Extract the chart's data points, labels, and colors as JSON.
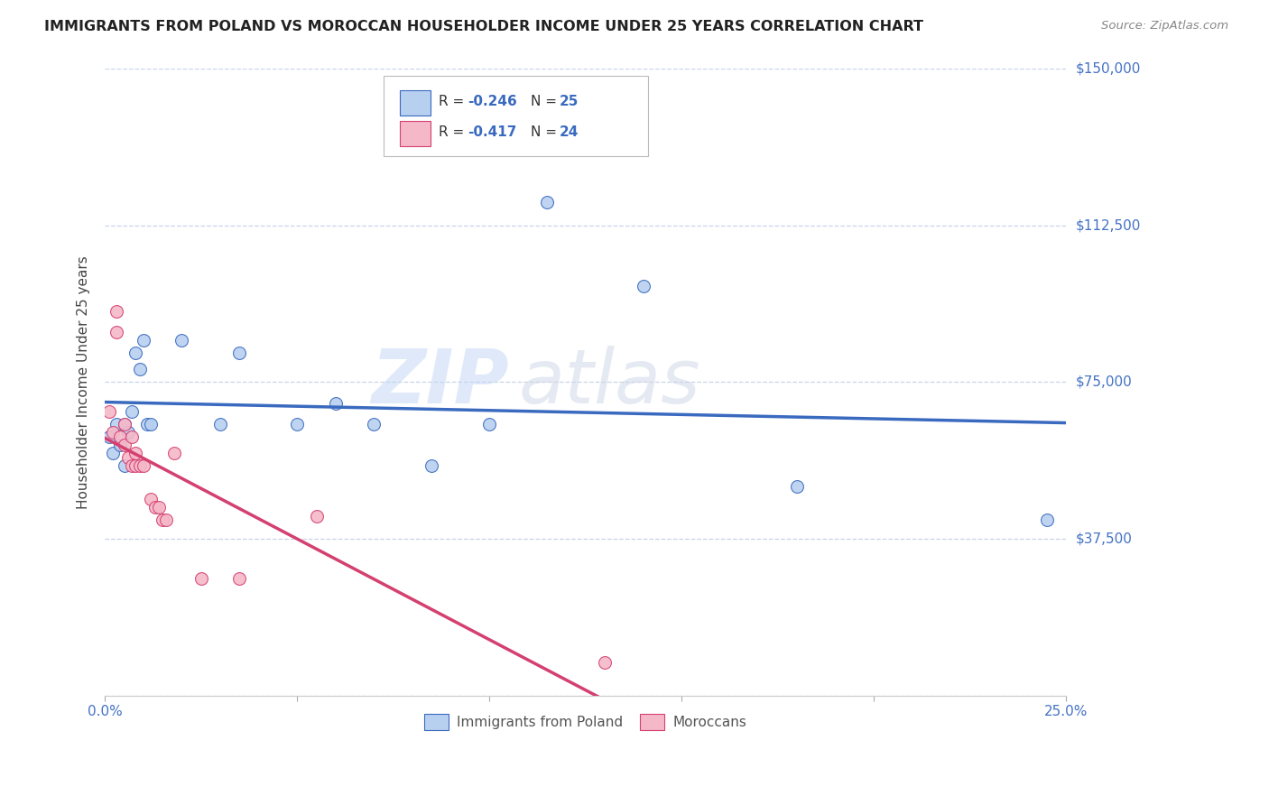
{
  "title": "IMMIGRANTS FROM POLAND VS MOROCCAN HOUSEHOLDER INCOME UNDER 25 YEARS CORRELATION CHART",
  "source": "Source: ZipAtlas.com",
  "ylabel": "Householder Income Under 25 years",
  "legend_label1": "Immigrants from Poland",
  "legend_label2": "Moroccans",
  "poland_r": "-0.246",
  "poland_n": "25",
  "morocco_r": "-0.417",
  "morocco_n": "24",
  "poland_x": [
    0.001,
    0.002,
    0.003,
    0.004,
    0.005,
    0.005,
    0.006,
    0.007,
    0.008,
    0.009,
    0.01,
    0.011,
    0.012,
    0.02,
    0.03,
    0.035,
    0.05,
    0.06,
    0.07,
    0.085,
    0.1,
    0.115,
    0.14,
    0.18,
    0.245
  ],
  "poland_y": [
    62000,
    58000,
    65000,
    60000,
    65000,
    55000,
    63000,
    68000,
    82000,
    78000,
    85000,
    65000,
    65000,
    85000,
    65000,
    82000,
    65000,
    70000,
    65000,
    55000,
    65000,
    118000,
    98000,
    50000,
    42000
  ],
  "morocco_x": [
    0.001,
    0.002,
    0.003,
    0.003,
    0.004,
    0.005,
    0.005,
    0.006,
    0.007,
    0.007,
    0.008,
    0.008,
    0.009,
    0.01,
    0.012,
    0.013,
    0.014,
    0.015,
    0.016,
    0.018,
    0.025,
    0.035,
    0.055,
    0.13
  ],
  "morocco_y": [
    68000,
    63000,
    92000,
    87000,
    62000,
    65000,
    60000,
    57000,
    55000,
    62000,
    58000,
    55000,
    55000,
    55000,
    47000,
    45000,
    45000,
    42000,
    42000,
    58000,
    28000,
    28000,
    43000,
    8000
  ],
  "poland_color": "#b8d0f0",
  "morocco_color": "#f5b8c8",
  "poland_line_color": "#3a6abf",
  "morocco_line_color": "#d44070",
  "watermark_zip": "ZIP",
  "watermark_atlas": "atlas",
  "bg_color": "#ffffff",
  "grid_color": "#c8d4e8",
  "title_color": "#222222",
  "right_label_color": "#4472c4",
  "yticks": [
    0,
    37500,
    75000,
    112500,
    150000
  ],
  "ytick_labels": [
    "",
    "$37,500",
    "$75,000",
    "$112,500",
    "$150,000"
  ],
  "marker_size": 100
}
